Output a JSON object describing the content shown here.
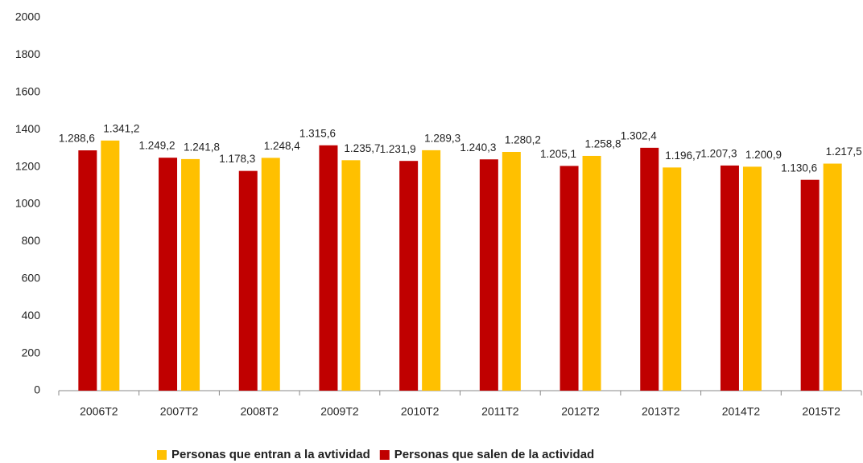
{
  "chart_data": {
    "type": "bar",
    "categories": [
      "2006T2",
      "2007T2",
      "2008T2",
      "2009T2",
      "2010T2",
      "2011T2",
      "2012T2",
      "2013T2",
      "2014T2",
      "2015T2"
    ],
    "series": [
      {
        "name": "Personas que entran a la avtividad",
        "color": "#ffc000",
        "values": [
          1341.2,
          1241.8,
          1248.4,
          1235.7,
          1289.3,
          1280.2,
          1258.8,
          1196.7,
          1200.9,
          1217.5
        ],
        "value_labels": [
          "1.341,2",
          "1.241,8",
          "1.248,4",
          "1.235,7",
          "1.289,3",
          "1.280,2",
          "1.258,8",
          "1.196,7",
          "1.200,9",
          "1.217,5"
        ]
      },
      {
        "name": "Personas que salen de la actividad",
        "color": "#c00000",
        "values": [
          1288.6,
          1249.2,
          1178.3,
          1315.6,
          1231.9,
          1240.3,
          1205.1,
          1302.4,
          1207.3,
          1130.6
        ],
        "value_labels": [
          "1.288,6",
          "1.249,2",
          "1.178,3",
          "1.315,6",
          "1.231,9",
          "1.240,3",
          "1.205,1",
          "1.302,4",
          "1.207,3",
          "1.130,6"
        ]
      }
    ],
    "ylim": [
      0,
      2000
    ],
    "yticks": [
      0,
      200,
      400,
      600,
      800,
      1000,
      1200,
      1400,
      1600,
      1800,
      2000
    ],
    "grid": false,
    "legend": "bottom"
  }
}
